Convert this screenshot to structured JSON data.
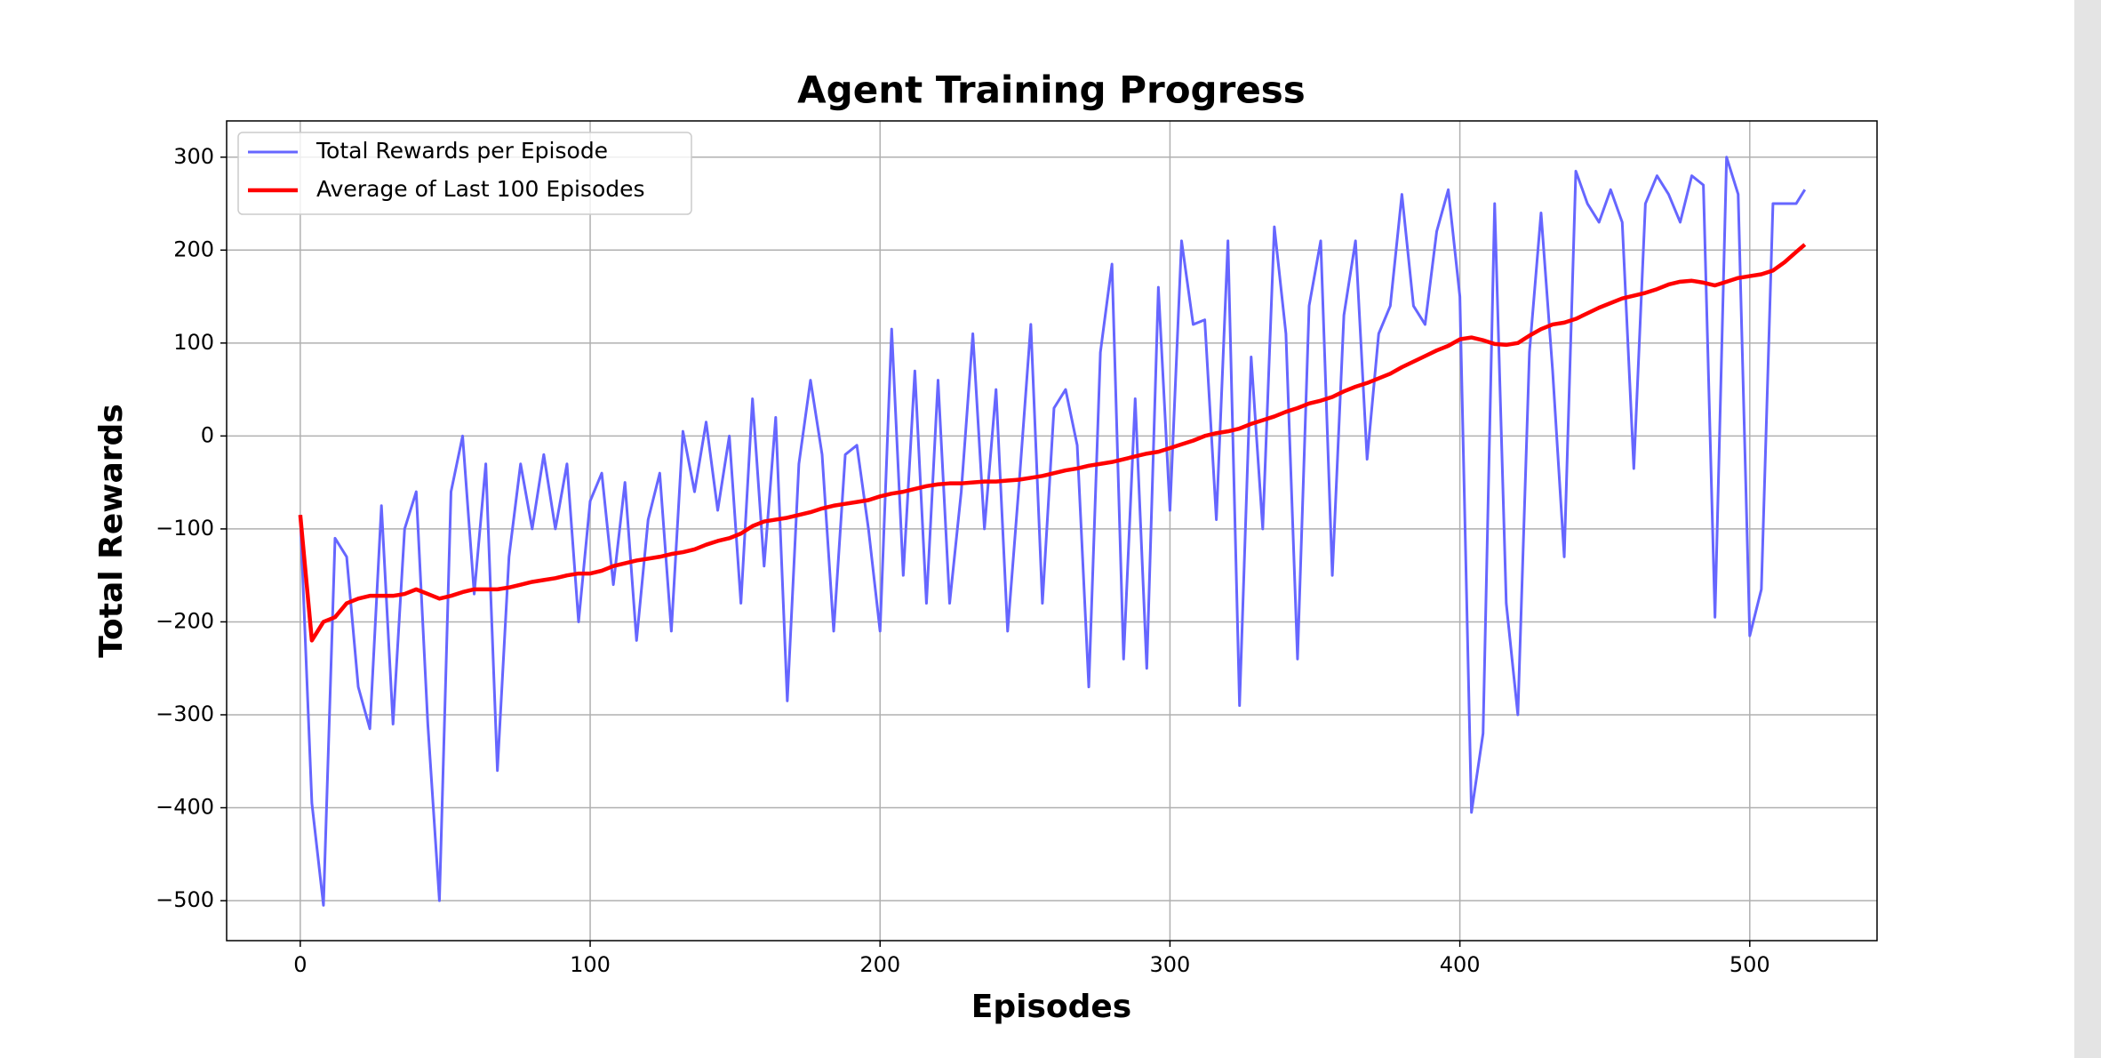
{
  "chart_data": {
    "type": "line",
    "title": "Agent Training Progress",
    "x_label": "Episodes",
    "y_label": "Total Rewards",
    "x": [
      0,
      4,
      8,
      12,
      16,
      20,
      24,
      28,
      32,
      36,
      40,
      44,
      48,
      52,
      56,
      60,
      64,
      68,
      72,
      76,
      80,
      84,
      88,
      92,
      96,
      100,
      104,
      108,
      112,
      116,
      120,
      124,
      128,
      132,
      136,
      140,
      144,
      148,
      152,
      156,
      160,
      164,
      168,
      172,
      176,
      180,
      184,
      188,
      192,
      196,
      200,
      204,
      208,
      212,
      216,
      220,
      224,
      228,
      232,
      236,
      240,
      244,
      248,
      252,
      256,
      260,
      264,
      268,
      272,
      276,
      280,
      284,
      288,
      292,
      296,
      300,
      304,
      308,
      312,
      316,
      320,
      324,
      328,
      332,
      336,
      340,
      344,
      348,
      352,
      356,
      360,
      364,
      368,
      372,
      376,
      380,
      384,
      388,
      392,
      396,
      400,
      404,
      408,
      412,
      416,
      420,
      424,
      428,
      432,
      436,
      440,
      444,
      448,
      452,
      456,
      460,
      464,
      468,
      472,
      476,
      480,
      484,
      488,
      492,
      496,
      500,
      504,
      508,
      512,
      516,
      519
    ],
    "series": [
      {
        "name": "Total Rewards per Episode",
        "color": "#6666ff",
        "width": 3,
        "values": [
          -85,
          -395,
          -505,
          -110,
          -130,
          -270,
          -315,
          -75,
          -310,
          -100,
          -60,
          -310,
          -500,
          -60,
          0,
          -170,
          -30,
          -360,
          -130,
          -30,
          -100,
          -20,
          -100,
          -30,
          -200,
          -70,
          -40,
          -160,
          -50,
          -220,
          -90,
          -40,
          -210,
          5,
          -60,
          15,
          -80,
          0,
          -180,
          40,
          -140,
          20,
          -285,
          -30,
          60,
          -20,
          -210,
          -20,
          -10,
          -100,
          -210,
          115,
          -150,
          70,
          -180,
          60,
          -180,
          -60,
          110,
          -100,
          50,
          -210,
          -50,
          120,
          -180,
          30,
          50,
          -10,
          -270,
          90,
          185,
          -240,
          40,
          -250,
          160,
          -80,
          210,
          120,
          125,
          -90,
          210,
          -290,
          85,
          -100,
          225,
          110,
          -240,
          140,
          210,
          -150,
          130,
          210,
          -25,
          110,
          140,
          260,
          140,
          120,
          220,
          265,
          150,
          -405,
          -320,
          250,
          -180,
          -300,
          90,
          240,
          70,
          -130,
          285,
          250,
          230,
          265,
          230,
          -35,
          250,
          280,
          260,
          230,
          280,
          270,
          -195,
          300,
          260,
          -215,
          -165,
          250,
          250,
          250,
          265
        ]
      },
      {
        "name": "Average of Last 100 Episodes",
        "color": "#ff0000",
        "width": 4.5,
        "values": [
          -85,
          -220,
          -200,
          -195,
          -180,
          -175,
          -172,
          -172,
          -172,
          -170,
          -165,
          -170,
          -175,
          -172,
          -168,
          -165,
          -165,
          -165,
          -163,
          -160,
          -157,
          -155,
          -153,
          -150,
          -148,
          -148,
          -145,
          -140,
          -137,
          -134,
          -132,
          -130,
          -127,
          -125,
          -122,
          -117,
          -113,
          -110,
          -105,
          -97,
          -92,
          -90,
          -88,
          -85,
          -82,
          -78,
          -75,
          -73,
          -71,
          -69,
          -65,
          -62,
          -60,
          -57,
          -54,
          -52,
          -51,
          -51,
          -50,
          -49,
          -49,
          -48,
          -47,
          -45,
          -43,
          -40,
          -37,
          -35,
          -32,
          -30,
          -28,
          -25,
          -22,
          -19,
          -17,
          -13,
          -9,
          -5,
          0,
          3,
          5,
          8,
          13,
          17,
          21,
          26,
          30,
          35,
          38,
          42,
          48,
          53,
          57,
          62,
          67,
          74,
          80,
          86,
          92,
          97,
          104,
          106,
          103,
          99,
          98,
          100,
          108,
          115,
          120,
          122,
          126,
          132,
          138,
          143,
          148,
          151,
          154,
          158,
          163,
          166,
          167,
          165,
          162,
          166,
          170,
          172,
          174,
          178,
          187,
          198,
          206
        ]
      }
    ],
    "xlim": [
      -25.4,
      543.9
    ],
    "ylim": [
      -543,
      339
    ],
    "xticks": [
      0,
      100,
      200,
      300,
      400,
      500
    ],
    "yticks": [
      {
        "value": -500,
        "label": "−500"
      },
      {
        "value": -400,
        "label": "−400"
      },
      {
        "value": -300,
        "label": "−300"
      },
      {
        "value": -200,
        "label": "−200"
      },
      {
        "value": -100,
        "label": "−100"
      },
      0,
      100,
      200,
      300
    ],
    "grid": true,
    "legend": "upper left"
  }
}
